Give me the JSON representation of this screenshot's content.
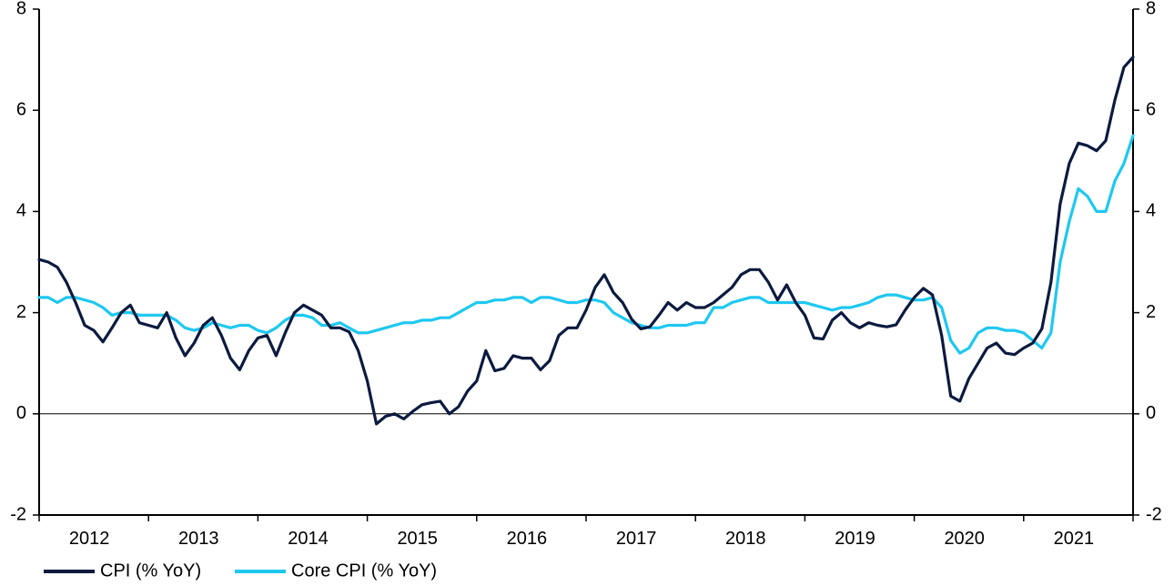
{
  "chart_data": {
    "type": "line",
    "title": "",
    "xlabel": "",
    "ylabel": "",
    "ylim": [
      -2,
      8
    ],
    "yticks": [
      -2,
      0,
      2,
      4,
      6,
      8
    ],
    "x_start": "2012-01",
    "x_tick_labels": [
      "2012",
      "2013",
      "2014",
      "2015",
      "2016",
      "2017",
      "2018",
      "2019",
      "2020",
      "2021"
    ],
    "grid": false,
    "zero_line": true,
    "legend_position": "bottom-left",
    "colors": {
      "CPI (% YoY)": "#0b1a3f",
      "Core CPI (% YoY)": "#1ec8f0"
    },
    "series": [
      {
        "name": "CPI (% YoY)",
        "values": [
          3.05,
          3.0,
          2.9,
          2.6,
          2.2,
          1.75,
          1.65,
          1.42,
          1.7,
          2.0,
          2.15,
          1.8,
          1.75,
          1.7,
          2.0,
          1.5,
          1.15,
          1.4,
          1.75,
          1.9,
          1.55,
          1.1,
          0.87,
          1.25,
          1.5,
          1.55,
          1.15,
          1.6,
          2.0,
          2.15,
          2.05,
          1.95,
          1.7,
          1.7,
          1.62,
          1.25,
          0.65,
          -0.2,
          -0.05,
          0.0,
          -0.1,
          0.05,
          0.18,
          0.22,
          0.25,
          0.0,
          0.14,
          0.45,
          0.65,
          1.25,
          0.85,
          0.9,
          1.15,
          1.1,
          1.1,
          0.87,
          1.05,
          1.55,
          1.7,
          1.7,
          2.05,
          2.5,
          2.75,
          2.4,
          2.2,
          1.87,
          1.68,
          1.72,
          1.95,
          2.2,
          2.05,
          2.2,
          2.1,
          2.1,
          2.2,
          2.35,
          2.5,
          2.75,
          2.85,
          2.85,
          2.6,
          2.25,
          2.55,
          2.2,
          1.95,
          1.5,
          1.48,
          1.85,
          2.0,
          1.8,
          1.7,
          1.8,
          1.75,
          1.72,
          1.76,
          2.05,
          2.3,
          2.48,
          2.35,
          1.55,
          0.35,
          0.25,
          0.7,
          1.0,
          1.3,
          1.4,
          1.2,
          1.17,
          1.3,
          1.4,
          1.68,
          2.6,
          4.15,
          4.95,
          5.35,
          5.3,
          5.2,
          5.4,
          6.2,
          6.85,
          7.05
        ]
      },
      {
        "name": "Core CPI (% YoY)",
        "values": [
          2.3,
          2.3,
          2.2,
          2.3,
          2.3,
          2.25,
          2.2,
          2.1,
          1.95,
          2.0,
          2.0,
          1.95,
          1.95,
          1.95,
          1.95,
          1.85,
          1.7,
          1.65,
          1.7,
          1.8,
          1.75,
          1.7,
          1.75,
          1.75,
          1.65,
          1.6,
          1.7,
          1.85,
          1.95,
          1.95,
          1.9,
          1.75,
          1.75,
          1.8,
          1.7,
          1.6,
          1.6,
          1.65,
          1.7,
          1.75,
          1.8,
          1.8,
          1.85,
          1.85,
          1.9,
          1.9,
          2.0,
          2.1,
          2.2,
          2.2,
          2.25,
          2.25,
          2.3,
          2.3,
          2.2,
          2.3,
          2.3,
          2.25,
          2.2,
          2.2,
          2.25,
          2.25,
          2.2,
          2.0,
          1.9,
          1.8,
          1.75,
          1.7,
          1.7,
          1.75,
          1.75,
          1.75,
          1.8,
          1.8,
          2.1,
          2.1,
          2.2,
          2.25,
          2.3,
          2.3,
          2.2,
          2.2,
          2.2,
          2.2,
          2.2,
          2.15,
          2.1,
          2.05,
          2.1,
          2.1,
          2.15,
          2.2,
          2.3,
          2.35,
          2.35,
          2.3,
          2.25,
          2.25,
          2.3,
          2.1,
          1.45,
          1.2,
          1.3,
          1.6,
          1.7,
          1.7,
          1.65,
          1.65,
          1.6,
          1.45,
          1.3,
          1.6,
          3.0,
          3.8,
          4.45,
          4.3,
          4.0,
          4.0,
          4.6,
          4.95,
          5.5
        ]
      }
    ]
  }
}
